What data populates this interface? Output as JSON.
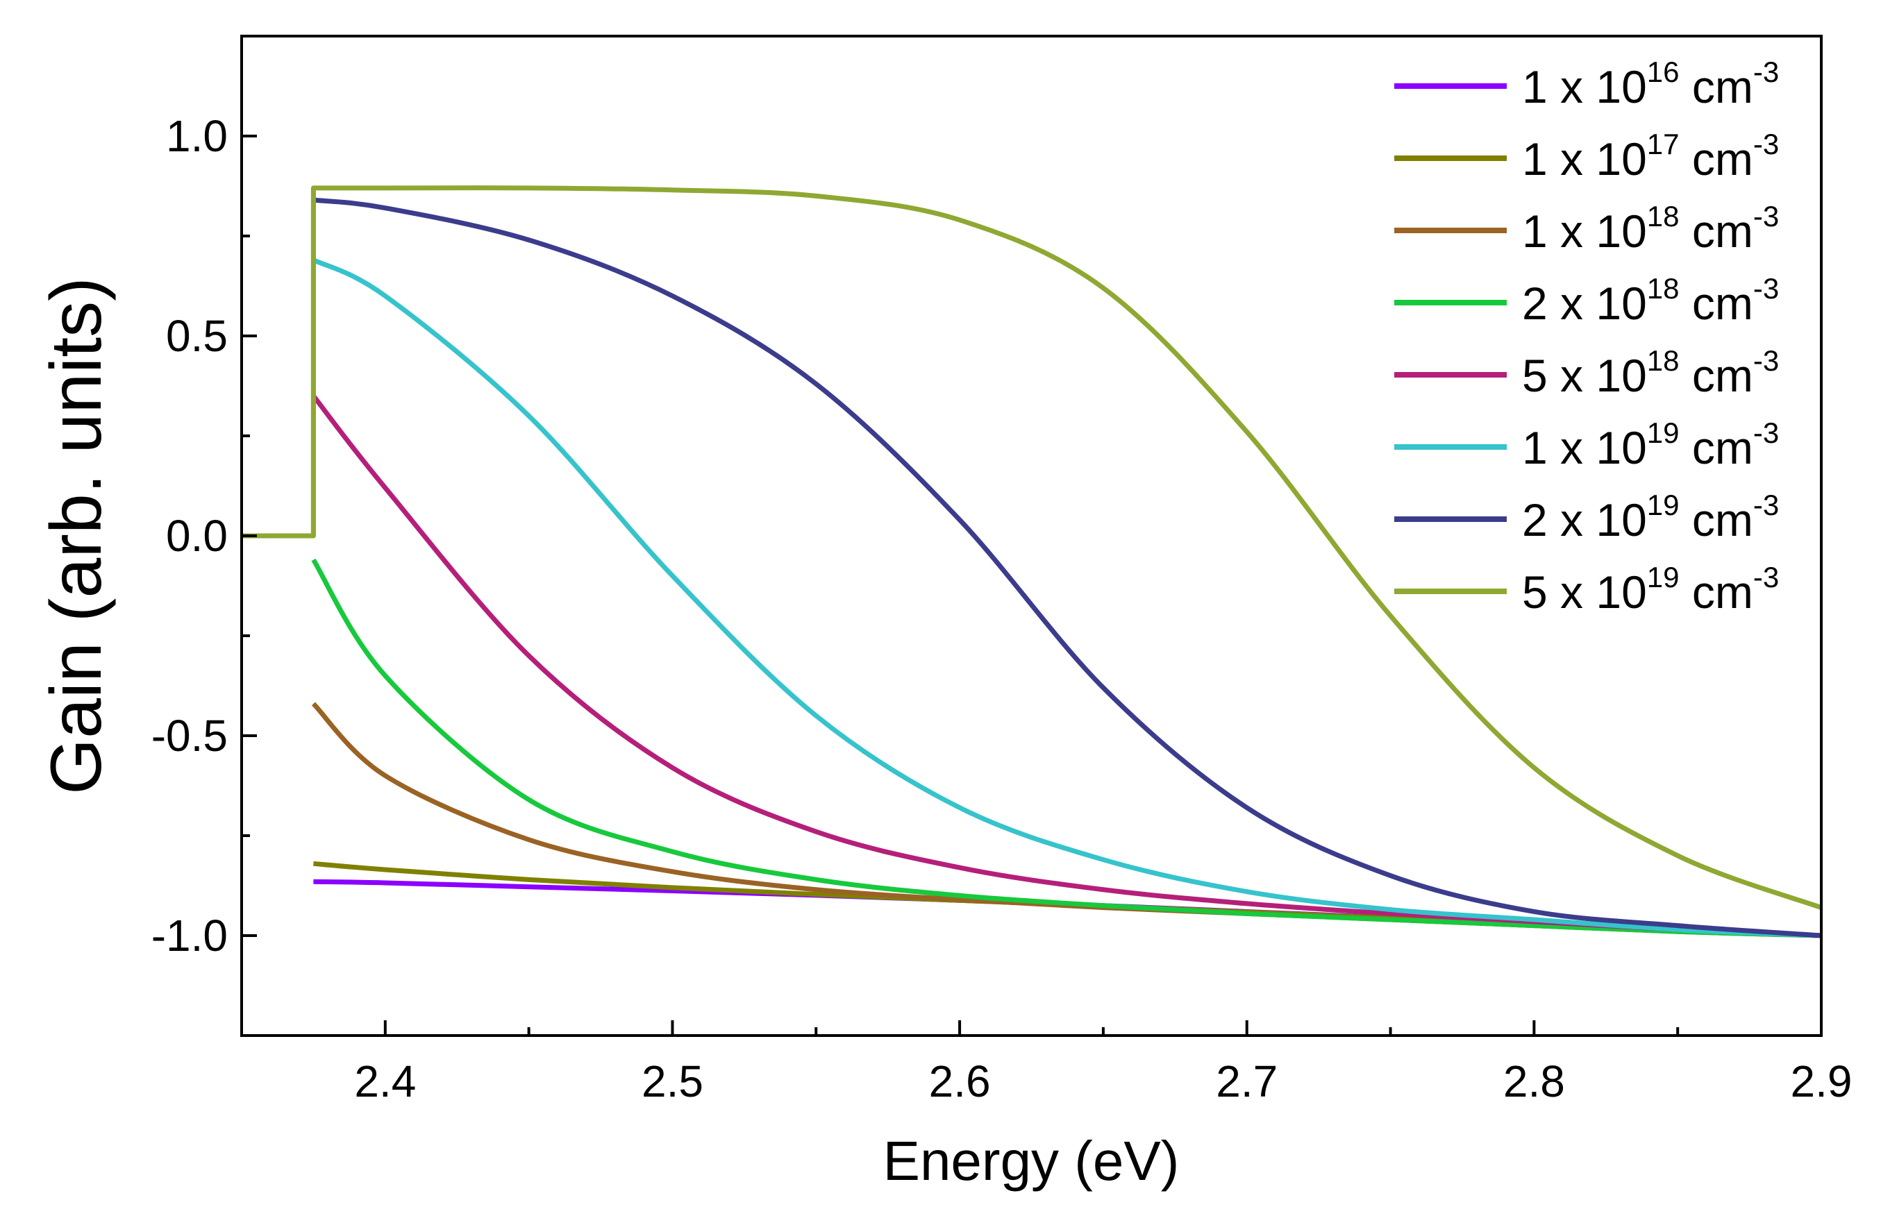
{
  "chart_data": {
    "type": "line",
    "title": "",
    "xlabel": "Energy (eV)",
    "ylabel": "Gain (arb. units)",
    "xlim": [
      2.35,
      2.9
    ],
    "ylim": [
      -1.25,
      1.25
    ],
    "xticks": [
      2.4,
      2.5,
      2.6,
      2.7,
      2.8,
      2.9
    ],
    "xtick_labels": [
      "2.4",
      "2.5",
      "2.6",
      "2.7",
      "2.8",
      "2.9"
    ],
    "yticks": [
      1.0,
      0.5,
      0.0,
      -0.5,
      -1.0
    ],
    "ytick_labels": [
      "1.0",
      "0.5",
      "0.0",
      "-0.5",
      "-1.0"
    ],
    "grid": false,
    "legend_position": "top-right",
    "series": [
      {
        "name": "1 x 10^16 cm^-3",
        "label": {
          "coef": "1 x 10",
          "exp": "16",
          "unit": " cm",
          "unit_exp": "-3"
        },
        "color": "#8b00ff",
        "x": [
          2.375,
          2.4,
          2.45,
          2.5,
          2.55,
          2.6,
          2.65,
          2.7,
          2.75,
          2.8,
          2.85,
          2.9
        ],
        "y": [
          -0.865,
          -0.868,
          -0.878,
          -0.888,
          -0.899,
          -0.912,
          -0.925,
          -0.94,
          -0.955,
          -0.97,
          -0.985,
          -1.0
        ]
      },
      {
        "name": "1 x 10^17 cm^-3",
        "label": {
          "coef": "1 x 10",
          "exp": "17",
          "unit": " cm",
          "unit_exp": "-3"
        },
        "color": "#808000",
        "x": [
          2.375,
          2.4,
          2.45,
          2.5,
          2.55,
          2.6,
          2.65,
          2.7,
          2.75,
          2.8,
          2.85,
          2.9
        ],
        "y": [
          -0.82,
          -0.835,
          -0.86,
          -0.88,
          -0.897,
          -0.912,
          -0.926,
          -0.941,
          -0.956,
          -0.971,
          -0.986,
          -1.0
        ]
      },
      {
        "name": "1 x 10^18 cm^-3",
        "label": {
          "coef": "1 x 10",
          "exp": "18",
          "unit": " cm",
          "unit_exp": "-3"
        },
        "color": "#9a6324",
        "x": [
          2.375,
          2.4,
          2.45,
          2.5,
          2.55,
          2.6,
          2.65,
          2.7,
          2.75,
          2.8,
          2.85,
          2.9
        ],
        "y": [
          -0.42,
          -0.6,
          -0.76,
          -0.84,
          -0.885,
          -0.91,
          -0.93,
          -0.945,
          -0.96,
          -0.975,
          -0.99,
          -1.0
        ]
      },
      {
        "name": "2 x 10^18 cm^-3",
        "label": {
          "coef": "2 x 10",
          "exp": "18",
          "unit": " cm",
          "unit_exp": "-3"
        },
        "color": "#17c93c",
        "x": [
          2.375,
          2.4,
          2.45,
          2.5,
          2.55,
          2.6,
          2.65,
          2.7,
          2.75,
          2.8,
          2.85,
          2.9
        ],
        "y": [
          -0.06,
          -0.35,
          -0.66,
          -0.79,
          -0.86,
          -0.9,
          -0.925,
          -0.945,
          -0.96,
          -0.975,
          -0.99,
          -1.0
        ]
      },
      {
        "name": "5 x 10^18 cm^-3",
        "label": {
          "coef": "5 x 10",
          "exp": "18",
          "unit": " cm",
          "unit_exp": "-3"
        },
        "color": "#b51f7a",
        "x": [
          2.375,
          2.4,
          2.45,
          2.5,
          2.55,
          2.6,
          2.65,
          2.7,
          2.75,
          2.8,
          2.85,
          2.9
        ],
        "y": [
          0.35,
          0.12,
          -0.3,
          -0.58,
          -0.74,
          -0.83,
          -0.885,
          -0.92,
          -0.945,
          -0.965,
          -0.985,
          -1.0
        ]
      },
      {
        "name": "1 x 10^19 cm^-3",
        "label": {
          "coef": "1 x 10",
          "exp": "19",
          "unit": " cm",
          "unit_exp": "-3"
        },
        "color": "#36c3cc",
        "x": [
          2.375,
          2.4,
          2.45,
          2.5,
          2.55,
          2.6,
          2.65,
          2.7,
          2.75,
          2.8,
          2.85,
          2.9
        ],
        "y": [
          0.69,
          0.6,
          0.3,
          -0.1,
          -0.45,
          -0.68,
          -0.81,
          -0.89,
          -0.935,
          -0.96,
          -0.985,
          -1.0
        ]
      },
      {
        "name": "2 x 10^19 cm^-3",
        "label": {
          "coef": "2 x 10",
          "exp": "19",
          "unit": " cm",
          "unit_exp": "-3"
        },
        "color": "#3b3c8c",
        "x": [
          2.375,
          2.4,
          2.45,
          2.5,
          2.55,
          2.6,
          2.65,
          2.7,
          2.75,
          2.8,
          2.85,
          2.9
        ],
        "y": [
          0.84,
          0.82,
          0.74,
          0.6,
          0.38,
          0.04,
          -0.38,
          -0.68,
          -0.85,
          -0.94,
          -0.975,
          -1.0
        ]
      },
      {
        "name": "5 x 10^19 cm^-3",
        "label": {
          "coef": "5 x 10",
          "exp": "19",
          "unit": " cm",
          "unit_exp": "-3"
        },
        "color": "#8ea832",
        "x": [
          2.35,
          2.375,
          2.4,
          2.45,
          2.5,
          2.55,
          2.6,
          2.65,
          2.7,
          2.75,
          2.8,
          2.85,
          2.9
        ],
        "y": [
          0.0,
          0.87,
          0.87,
          0.87,
          0.865,
          0.85,
          0.79,
          0.62,
          0.26,
          -0.2,
          -0.58,
          -0.8,
          -0.93
        ]
      }
    ]
  }
}
